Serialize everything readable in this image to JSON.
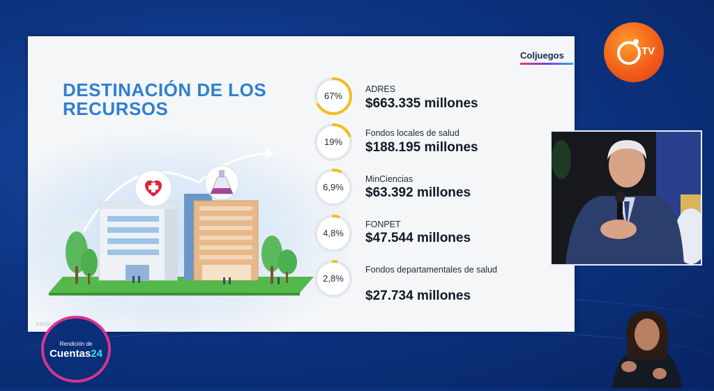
{
  "slide": {
    "title": "DESTINACIÓN DE LOS RECURSOS",
    "brand": "Coljuegos",
    "footer": "COLJU                    TORIA"
  },
  "items": [
    {
      "percent_label": "67%",
      "fraction": 0.67,
      "name": "ADRES",
      "amount": "$663.335 millones"
    },
    {
      "percent_label": "19%",
      "fraction": 0.19,
      "name": "Fondos locales de salud",
      "amount": "$188.195 millones"
    },
    {
      "percent_label": "6,9%",
      "fraction": 0.069,
      "name": "MinCiencias",
      "amount": "$63.392 millones"
    },
    {
      "percent_label": "4,8%",
      "fraction": 0.048,
      "name": "FONPET",
      "amount": "$47.544 millones"
    },
    {
      "percent_label": "2,8%",
      "fraction": 0.028,
      "name": "Fondos departamentales de salud",
      "amount": "$27.734 millones"
    }
  ],
  "tv_logo": {
    "text": "TV"
  },
  "event_logo": {
    "top": "Rendición de",
    "main": "Cuentas",
    "number": "24"
  },
  "colors": {
    "ring_fill": "#f2bd1d",
    "ring_track": "#e3e7ec",
    "title": "#2f7fd1"
  },
  "icons": [
    "medical-cross-icon",
    "flask-icon",
    "cloud-icon",
    "arrow-icon"
  ]
}
